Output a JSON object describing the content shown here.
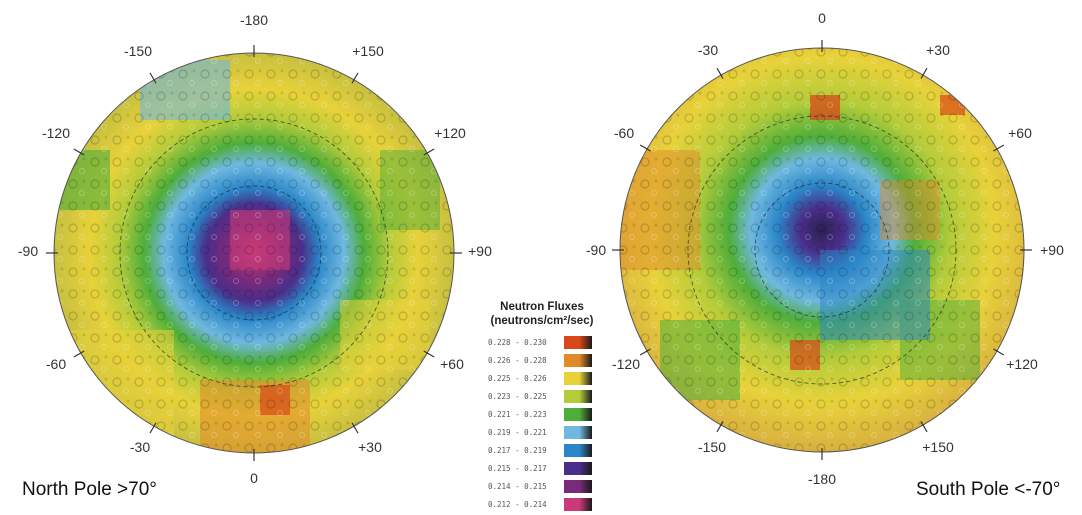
{
  "north": {
    "caption": "North Pole >70°",
    "lon_labels": [
      "-180",
      "+150",
      "+120",
      "+90",
      "+60",
      "+30",
      "0",
      "-30",
      "-60",
      "-90",
      "-120",
      "-150"
    ]
  },
  "south": {
    "caption": "South Pole <-70°",
    "lon_labels": [
      "0",
      "+30",
      "+60",
      "+90",
      "+120",
      "+150",
      "-180",
      "-150",
      "-120",
      "-90",
      "-60",
      "-30"
    ]
  },
  "legend": {
    "title_line1": "Neutron  Fluxes",
    "title_line2": "(neutrons/cm²/sec)",
    "entries": [
      {
        "range": "0.228 - 0.230",
        "color": "#d84818"
      },
      {
        "range": "0.226 - 0.228",
        "color": "#e08a2a"
      },
      {
        "range": "0.225 - 0.226",
        "color": "#e8d23a"
      },
      {
        "range": "0.223 - 0.225",
        "color": "#b4cc3a"
      },
      {
        "range": "0.221 - 0.223",
        "color": "#4fae3a"
      },
      {
        "range": "0.219 - 0.221",
        "color": "#6fb8e0"
      },
      {
        "range": "0.217 - 0.219",
        "color": "#2a86c8"
      },
      {
        "range": "0.215 - 0.217",
        "color": "#4a2e8a"
      },
      {
        "range": "0.214 - 0.215",
        "color": "#7a2a7a"
      },
      {
        "range": "0.212 - 0.214",
        "color": "#c83a78"
      }
    ]
  }
}
